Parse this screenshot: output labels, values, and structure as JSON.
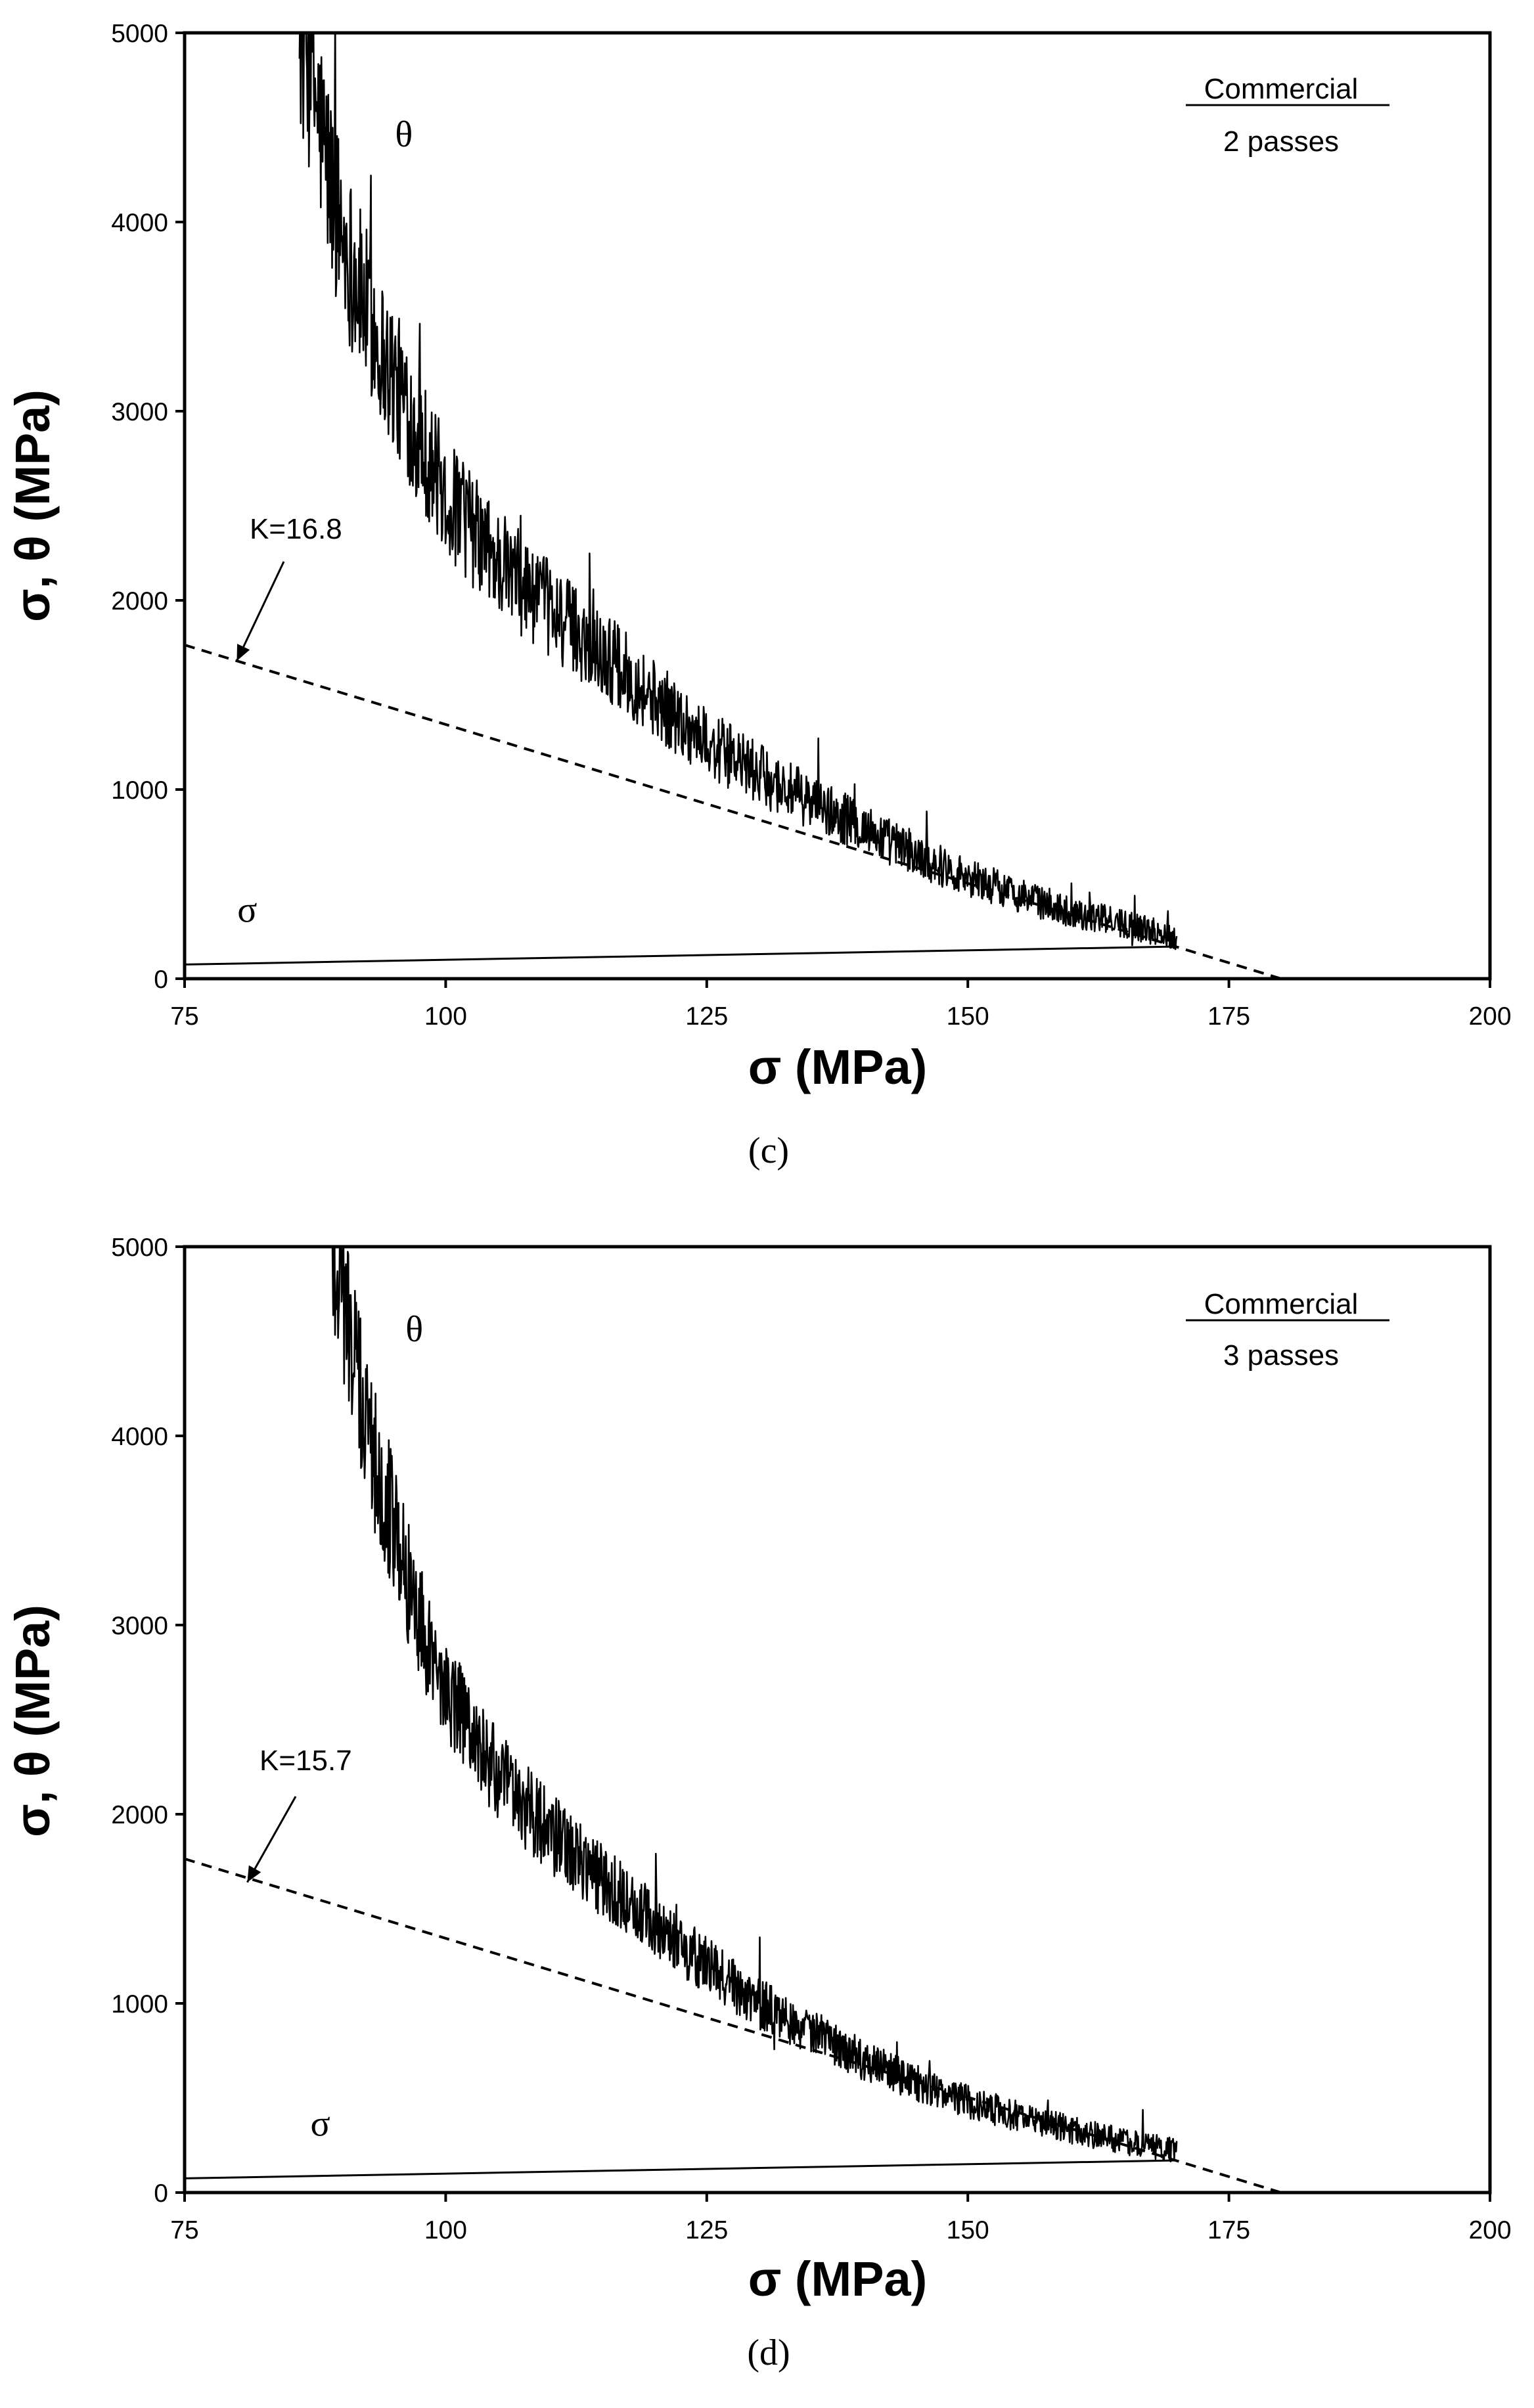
{
  "chart_data": [
    {
      "type": "line",
      "panel_label": "(c)",
      "xlabel": "σ (MPa)",
      "ylabel": "σ, θ (MPa)",
      "xlim": [
        75,
        200
      ],
      "ylim": [
        0,
        5000
      ],
      "xticks": [
        "75",
        "100",
        "125",
        "150",
        "175",
        "200"
      ],
      "yticks": [
        "0",
        "1000",
        "2000",
        "3000",
        "4000",
        "5000"
      ],
      "grid": false,
      "legend_title": "Commercial",
      "legend_subtitle": "2 passes",
      "series": [
        {
          "name": "θ",
          "style": "solid-noisy",
          "x": [
            86,
            87,
            88,
            89,
            90,
            92,
            94,
            96,
            98,
            100,
            105,
            110,
            115,
            120,
            125,
            130,
            135,
            140,
            145,
            150,
            155,
            160,
            165,
            170
          ],
          "y": [
            5000,
            4850,
            4500,
            4200,
            3950,
            3600,
            3300,
            3050,
            2800,
            2550,
            2200,
            1950,
            1720,
            1480,
            1250,
            1080,
            930,
            800,
            650,
            540,
            440,
            350,
            290,
            220
          ]
        },
        {
          "name": "σ",
          "style": "solid",
          "x": [
            75,
            170
          ],
          "y": [
            75,
            170
          ]
        },
        {
          "name": "fit",
          "style": "dashed",
          "x": [
            75,
            180
          ],
          "y": [
            1764,
            0
          ]
        }
      ],
      "annotations": [
        {
          "text": "θ",
          "x": 96,
          "y": 4400
        },
        {
          "text": "σ",
          "x": 81,
          "y": 300
        },
        {
          "text": "K=16.8",
          "arrow_to": [
            80,
            1680
          ]
        }
      ]
    },
    {
      "type": "line",
      "panel_label": "(d)",
      "xlabel": "σ (MPa)",
      "ylabel": "σ, θ (MPa)",
      "xlim": [
        75,
        200
      ],
      "ylim": [
        0,
        5000
      ],
      "xticks": [
        "75",
        "100",
        "125",
        "150",
        "175",
        "200"
      ],
      "yticks": [
        "0",
        "1000",
        "2000",
        "3000",
        "4000",
        "5000"
      ],
      "grid": false,
      "legend_title": "Commercial",
      "legend_subtitle": "3 passes",
      "series": [
        {
          "name": "θ",
          "style": "solid-noisy",
          "x": [
            89,
            90,
            91,
            92,
            94,
            96,
            98,
            100,
            105,
            110,
            115,
            120,
            125,
            130,
            135,
            140,
            145,
            150,
            155,
            160,
            165,
            170
          ],
          "y": [
            5000,
            4800,
            4500,
            4150,
            3750,
            3300,
            2950,
            2650,
            2200,
            1900,
            1650,
            1420,
            1200,
            1000,
            850,
            700,
            580,
            480,
            400,
            330,
            270,
            220
          ]
        },
        {
          "name": "σ",
          "style": "solid",
          "x": [
            75,
            170
          ],
          "y": [
            75,
            170
          ]
        },
        {
          "name": "fit",
          "style": "dashed",
          "x": [
            75,
            180
          ],
          "y": [
            1764,
            0
          ]
        }
      ],
      "annotations": [
        {
          "text": "θ",
          "x": 97,
          "y": 4500
        },
        {
          "text": "σ",
          "x": 88,
          "y": 300
        },
        {
          "text": "K=15.7",
          "arrow_to": [
            81,
            1640
          ]
        }
      ]
    }
  ]
}
